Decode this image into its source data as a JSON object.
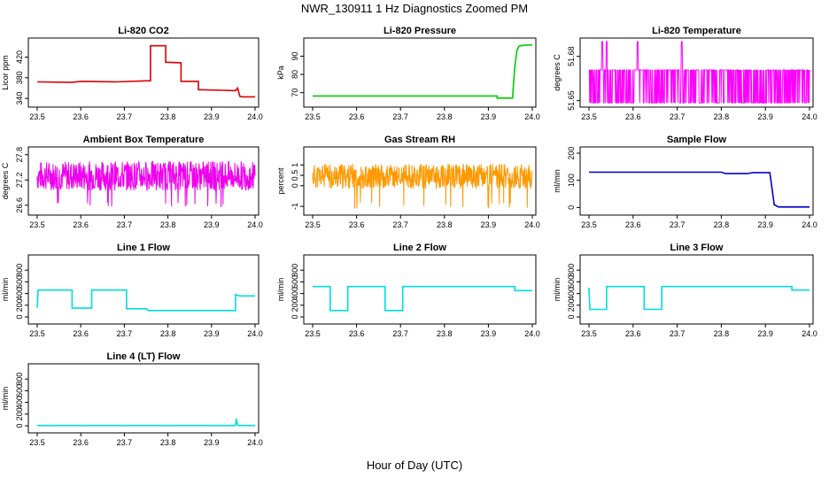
{
  "figure": {
    "title": "NWR_130911  1 Hz Diagnostics Zoomed PM",
    "xlabel": "Hour of Day (UTC)"
  },
  "chart_data": [
    {
      "id": "co2",
      "type": "line",
      "title": "Li-820 CO2",
      "ylabel": "Licor ppm",
      "color": "#dd0000",
      "xlim": [
        23.5,
        24.0
      ],
      "ylim": [
        330,
        450
      ],
      "xticks": [
        "23.5",
        "23.6",
        "23.7",
        "23.8",
        "23.9",
        "24.0"
      ],
      "yticks": [
        340,
        380,
        420
      ],
      "series": [
        {
          "x": [
            23.5,
            23.58,
            23.6,
            23.68,
            23.75,
            23.76,
            23.76,
            23.795,
            23.795,
            23.83,
            23.83,
            23.87,
            23.87,
            23.955,
            23.96,
            23.965,
            23.97,
            24.0
          ],
          "y": [
            372,
            371,
            373,
            372,
            374,
            374,
            442,
            442,
            410,
            409,
            373,
            373,
            357,
            355,
            360,
            344,
            343,
            343
          ]
        }
      ]
    },
    {
      "id": "pressure",
      "type": "line",
      "title": "Li-820 Pressure",
      "ylabel": "kPa",
      "color": "#00cc00",
      "xlim": [
        23.5,
        24.0
      ],
      "ylim": [
        64,
        98
      ],
      "xticks": [
        "23.5",
        "23.6",
        "23.7",
        "23.8",
        "23.9",
        "24.0"
      ],
      "yticks": [
        70,
        80,
        90
      ],
      "series": [
        {
          "x": [
            23.5,
            23.92,
            23.92,
            23.955,
            23.96,
            23.965,
            23.97,
            23.98,
            24.0
          ],
          "y": [
            68.2,
            68.2,
            67.0,
            67.0,
            84,
            93,
            95.5,
            96.0,
            96.2
          ]
        }
      ]
    },
    {
      "id": "licor-temp",
      "type": "line",
      "title": "Li-820 Temperature",
      "ylabel": "degrees C",
      "color": "#ff00ff",
      "xlim": [
        23.5,
        24.0
      ],
      "ylim": [
        51.648,
        51.69
      ],
      "xticks": [
        "23.5",
        "23.6",
        "23.7",
        "23.8",
        "23.9",
        "24.0"
      ],
      "yticks": [
        51.65,
        51.68
      ],
      "noise": {
        "low": 51.6485,
        "high": 51.6708,
        "spikes_high": 51.69,
        "spikes_at": [
          23.53,
          23.54,
          23.61,
          23.71
        ],
        "points": 600,
        "seed": 3
      }
    },
    {
      "id": "box-temp",
      "type": "line",
      "title": "Ambient Box Temperature",
      "ylabel": "degrees C",
      "color": "#ee00ee",
      "xlim": [
        23.5,
        24.0
      ],
      "ylim": [
        26.45,
        27.9
      ],
      "xticks": [
        "23.5",
        "23.6",
        "23.7",
        "23.8",
        "23.9",
        "24.0"
      ],
      "yticks": [
        26.6,
        27.2,
        27.8
      ],
      "noise": {
        "center": 27.3,
        "amp": 0.35,
        "dips": 26.55,
        "points": 700,
        "seed": 7
      }
    },
    {
      "id": "rh",
      "type": "line",
      "title": "Gas Stream RH",
      "ylabel": "percent",
      "color": "#ff9900",
      "xlim": [
        23.5,
        24.0
      ],
      "ylim": [
        -1.25,
        1.7
      ],
      "xticks": [
        "23.5",
        "23.6",
        "23.7",
        "23.8",
        "23.9",
        "24.0"
      ],
      "yticks": [
        -1.0,
        0.0,
        0.5,
        1.0
      ],
      "noise": {
        "center": 0.45,
        "amp": 0.6,
        "dips": -1.1,
        "points": 700,
        "seed": 11
      }
    },
    {
      "id": "sample-flow",
      "type": "line",
      "title": "Sample Flow",
      "ylabel": "ml/min",
      "color": "#0000cc",
      "xlim": [
        23.5,
        24.0
      ],
      "ylim": [
        -15,
        210
      ],
      "xticks": [
        "23.5",
        "23.6",
        "23.7",
        "23.8",
        "23.9",
        "24.0"
      ],
      "yticks": [
        0,
        100,
        200
      ],
      "series": [
        {
          "x": [
            23.5,
            23.8,
            23.81,
            23.86,
            23.87,
            23.91,
            23.92,
            23.93,
            24.0
          ],
          "y": [
            130,
            130,
            125,
            125,
            128,
            128,
            10,
            2,
            2
          ]
        }
      ]
    },
    {
      "id": "line1",
      "type": "line",
      "title": "Line 1 Flow",
      "ylabel": "ml/min",
      "color": "#00dddd",
      "xlim": [
        23.5,
        24.0
      ],
      "ylim": [
        -60,
        1000
      ],
      "xticks": [
        "23.5",
        "23.6",
        "23.7",
        "23.8",
        "23.9",
        "24.0"
      ],
      "yticks": [
        0,
        200,
        400,
        600,
        800
      ],
      "series": [
        {
          "x": [
            23.5,
            23.502,
            23.58,
            23.58,
            23.625,
            23.625,
            23.705,
            23.705,
            23.75,
            23.755,
            23.955,
            23.955,
            23.965,
            24.0
          ],
          "y": [
            160,
            460,
            460,
            150,
            150,
            460,
            460,
            140,
            140,
            110,
            110,
            380,
            360,
            360
          ]
        }
      ]
    },
    {
      "id": "line2",
      "type": "line",
      "title": "Line 2 Flow",
      "ylabel": "ml/min",
      "color": "#00dddd",
      "xlim": [
        23.5,
        24.0
      ],
      "ylim": [
        -60,
        1000
      ],
      "xticks": [
        "23.5",
        "23.6",
        "23.7",
        "23.8",
        "23.9",
        "24.0"
      ],
      "yticks": [
        0,
        200,
        400,
        600,
        800
      ],
      "series": [
        {
          "x": [
            23.5,
            23.54,
            23.54,
            23.58,
            23.58,
            23.665,
            23.665,
            23.705,
            23.705,
            23.96,
            23.96,
            24.0
          ],
          "y": [
            520,
            520,
            110,
            110,
            520,
            520,
            110,
            110,
            520,
            520,
            450,
            450
          ]
        }
      ]
    },
    {
      "id": "line3",
      "type": "line",
      "title": "Line 3 Flow",
      "ylabel": "ml/min",
      "color": "#00dddd",
      "xlim": [
        23.5,
        24.0
      ],
      "ylim": [
        -60,
        1000
      ],
      "xticks": [
        "23.5",
        "23.6",
        "23.7",
        "23.8",
        "23.9",
        "24.0"
      ],
      "yticks": [
        0,
        200,
        400,
        600,
        800
      ],
      "series": [
        {
          "x": [
            23.5,
            23.502,
            23.505,
            23.54,
            23.54,
            23.625,
            23.625,
            23.665,
            23.665,
            23.96,
            23.96,
            24.0
          ],
          "y": [
            500,
            130,
            130,
            130,
            520,
            520,
            130,
            130,
            520,
            520,
            460,
            460
          ]
        }
      ]
    },
    {
      "id": "line4",
      "type": "line",
      "title": "Line 4 (LT) Flow",
      "ylabel": "ml/min",
      "color": "#00dddd",
      "xlim": [
        23.5,
        24.0
      ],
      "ylim": [
        -60,
        1000
      ],
      "xticks": [
        "23.5",
        "23.6",
        "23.7",
        "23.8",
        "23.9",
        "24.0"
      ],
      "yticks": [
        0,
        200,
        400,
        600,
        800
      ],
      "series": [
        {
          "x": [
            23.5,
            23.955,
            23.957,
            23.959,
            23.961,
            24.0
          ],
          "y": [
            5,
            5,
            120,
            40,
            5,
            5
          ]
        }
      ]
    }
  ]
}
